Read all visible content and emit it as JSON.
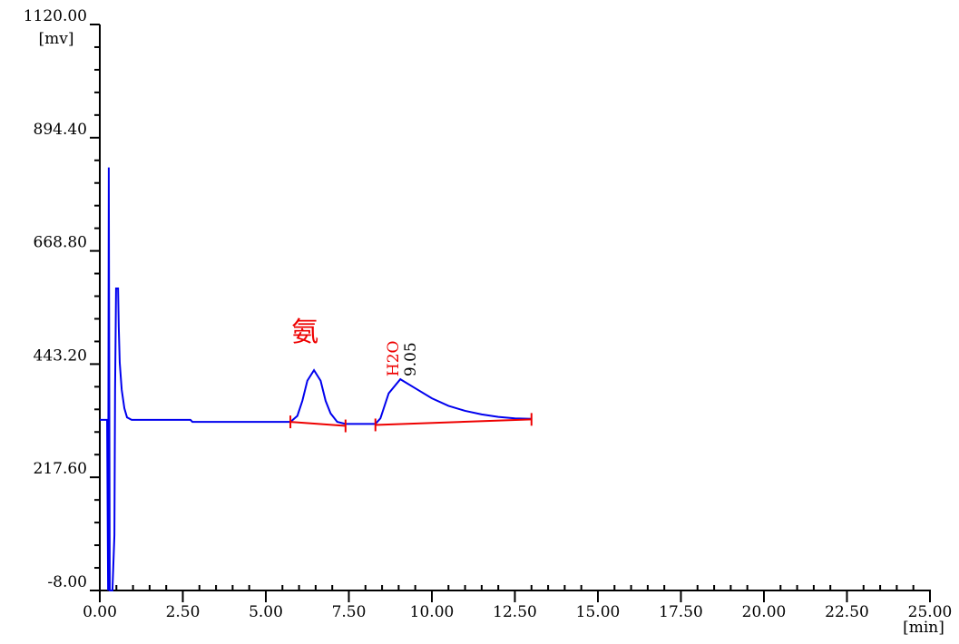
{
  "chart_data": {
    "type": "line",
    "x_unit": "[min]",
    "y_unit": "[mv]",
    "xlim": [
      0,
      25
    ],
    "ylim": [
      -8,
      1120
    ],
    "xticks": [
      {
        "value": 0,
        "label": "0.00"
      },
      {
        "value": 2.5,
        "label": "2.50"
      },
      {
        "value": 5,
        "label": "5.00"
      },
      {
        "value": 7.5,
        "label": "7.50"
      },
      {
        "value": 10,
        "label": "10.00"
      },
      {
        "value": 12.5,
        "label": "12.50"
      },
      {
        "value": 15,
        "label": "15.00"
      },
      {
        "value": 17.5,
        "label": "17.50"
      },
      {
        "value": 20,
        "label": "20.00"
      },
      {
        "value": 22.5,
        "label": "22.50"
      },
      {
        "value": 25,
        "label": "25.00"
      }
    ],
    "yticks": [
      {
        "value": -8,
        "label": "-8.00"
      },
      {
        "value": 217.6,
        "label": "217.60"
      },
      {
        "value": 443.2,
        "label": "443.20"
      },
      {
        "value": 668.8,
        "label": "668.80"
      },
      {
        "value": 894.4,
        "label": "894.40"
      },
      {
        "value": 1120,
        "label": "1120.00"
      }
    ],
    "series": [
      {
        "color": "#0000ee",
        "x": [
          0,
          0.22,
          0.25,
          0.27,
          0.3,
          0.38,
          0.44,
          0.46,
          0.49,
          0.55,
          0.57,
          0.6,
          0.66,
          0.74,
          0.82,
          0.96,
          2.73,
          2.79,
          5.74,
          5.95,
          6.1,
          6.25,
          6.45,
          6.65,
          6.8,
          6.95,
          7.15,
          7.4,
          8.3,
          8.45,
          8.7,
          9.05,
          9.5,
          10.0,
          10.5,
          11.0,
          11.5,
          12.0,
          12.5,
          13.0
        ],
        "values": [
          332,
          332,
          -8,
          835,
          -8,
          -8,
          102,
          392,
          594,
          594,
          518,
          446,
          392,
          355,
          337,
          332,
          332,
          328,
          328,
          340,
          370,
          410,
          431,
          410,
          370,
          345,
          328,
          324,
          324,
          335,
          385,
          413,
          395,
          375,
          360,
          350,
          343,
          338,
          335,
          334
        ]
      }
    ],
    "baselines": [
      {
        "color": "#ee0000",
        "x": [
          5.74,
          7.4
        ],
        "values": [
          328,
          320
        ]
      },
      {
        "color": "#ee0000",
        "x": [
          8.3,
          13.0
        ],
        "values": [
          322,
          333
        ]
      }
    ],
    "peaks": [
      {
        "name": "氨",
        "x": 6.45,
        "value": 431
      },
      {
        "name": "H2O",
        "time_label": "9.05",
        "x": 9.05,
        "value": 413
      }
    ]
  }
}
